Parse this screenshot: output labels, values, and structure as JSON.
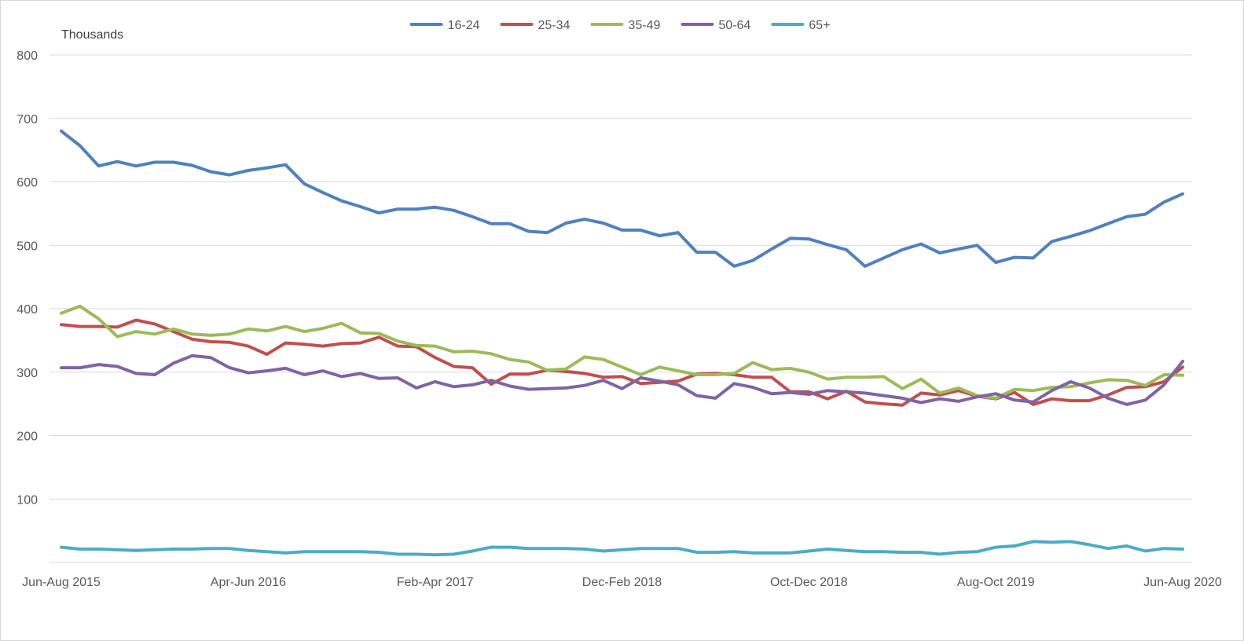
{
  "chart_data": {
    "type": "line",
    "unit_label": "Thousands",
    "ylim": [
      0,
      800
    ],
    "yticks": [
      100,
      200,
      300,
      400,
      500,
      600,
      700,
      800
    ],
    "grid": true,
    "legend_position": "top",
    "x_tick_labels": [
      "Jun-Aug 2015",
      "Apr-Jun 2016",
      "Feb-Apr 2017",
      "Dec-Feb 2018",
      "Oct-Dec 2018",
      "Aug-Oct 2019",
      "Jun-Aug 2020"
    ],
    "x": [
      "Jun-Aug 2015",
      "Jul-Sep 2015",
      "Aug-Oct 2015",
      "Sep-Nov 2015",
      "Oct-Dec 2015",
      "Nov-Jan 2016",
      "Dec-Feb 2016",
      "Jan-Mar 2016",
      "Feb-Apr 2016",
      "Mar-May 2016",
      "Apr-Jun 2016",
      "May-Jul 2016",
      "Jun-Aug 2016",
      "Jul-Sep 2016",
      "Aug-Oct 2016",
      "Sep-Nov 2016",
      "Oct-Dec 2016",
      "Nov-Jan 2017",
      "Dec-Feb 2017",
      "Jan-Mar 2017",
      "Feb-Apr 2017",
      "Mar-May 2017",
      "Apr-Jun 2017",
      "May-Jul 2017",
      "Jun-Aug 2017",
      "Jul-Sep 2017",
      "Aug-Oct 2017",
      "Sep-Nov 2017",
      "Oct-Dec 2017",
      "Nov-Jan 2018",
      "Dec-Feb 2018",
      "Jan-Mar 2018",
      "Feb-Apr 2018",
      "Mar-May 2018",
      "Apr-Jun 2018",
      "May-Jul 2018",
      "Jun-Aug 2018",
      "Jul-Sep 2018",
      "Aug-Oct 2018",
      "Sep-Nov 2018",
      "Oct-Dec 2018",
      "Nov-Jan 2019",
      "Dec-Feb 2019",
      "Jan-Mar 2019",
      "Feb-Apr 2019",
      "Mar-May 2019",
      "Apr-Jun 2019",
      "May-Jul 2019",
      "Jun-Aug 2019",
      "Jul-Sep 2019",
      "Aug-Oct 2019",
      "Sep-Nov 2019",
      "Oct-Dec 2019",
      "Nov-Jan 2020",
      "Dec-Feb 2020",
      "Jan-Mar 2020",
      "Feb-Apr 2020",
      "Mar-May 2020",
      "Apr-Jun 2020",
      "May-Jul 2020",
      "Jun-Aug 2020"
    ],
    "series": [
      {
        "name": "16-24",
        "color": "#4f81bd",
        "values": [
          680,
          657,
          625,
          632,
          625,
          631,
          631,
          626,
          616,
          611,
          618,
          622,
          627,
          597,
          583,
          570,
          561,
          551,
          557,
          557,
          560,
          555,
          545,
          534,
          534,
          522,
          520,
          535,
          541,
          535,
          524,
          524,
          515,
          520,
          489,
          489,
          467,
          476,
          494,
          511,
          510,
          501,
          493,
          467,
          480,
          493,
          502,
          488,
          494,
          500,
          473,
          481,
          480,
          506,
          514,
          523,
          534,
          545,
          549,
          568,
          581
        ]
      },
      {
        "name": "25-34",
        "color": "#c0504d",
        "values": [
          375,
          372,
          372,
          371,
          382,
          376,
          364,
          352,
          348,
          347,
          341,
          328,
          346,
          344,
          341,
          345,
          346,
          355,
          341,
          340,
          323,
          309,
          307,
          281,
          297,
          297,
          303,
          301,
          298,
          292,
          293,
          282,
          284,
          286,
          297,
          298,
          296,
          292,
          292,
          269,
          269,
          258,
          270,
          253,
          250,
          248,
          267,
          264,
          271,
          262,
          258,
          268,
          249,
          258,
          255,
          255,
          264,
          276,
          277,
          285,
          308
        ]
      },
      {
        "name": "35-49",
        "color": "#9bbb59",
        "values": [
          393,
          404,
          384,
          356,
          364,
          360,
          368,
          360,
          358,
          360,
          368,
          365,
          372,
          364,
          369,
          377,
          362,
          361,
          349,
          342,
          341,
          332,
          333,
          329,
          320,
          316,
          303,
          305,
          324,
          320,
          308,
          296,
          308,
          302,
          296,
          296,
          298,
          315,
          304,
          306,
          300,
          289,
          292,
          292,
          293,
          274,
          289,
          267,
          275,
          263,
          259,
          273,
          271,
          276,
          277,
          283,
          288,
          287,
          279,
          296,
          295
        ]
      },
      {
        "name": "50-64",
        "color": "#8064a2",
        "values": [
          307,
          307,
          312,
          309,
          298,
          296,
          314,
          326,
          323,
          307,
          299,
          302,
          306,
          296,
          302,
          293,
          298,
          290,
          291,
          275,
          285,
          277,
          280,
          287,
          278,
          273,
          274,
          275,
          279,
          287,
          274,
          291,
          286,
          280,
          263,
          259,
          282,
          276,
          266,
          268,
          265,
          271,
          269,
          267,
          263,
          259,
          252,
          258,
          254,
          261,
          266,
          256,
          253,
          271,
          285,
          275,
          259,
          249,
          256,
          280,
          317
        ]
      },
      {
        "name": "65+",
        "color": "#4bacc6",
        "values": [
          24,
          21,
          21,
          20,
          19,
          20,
          21,
          21,
          22,
          22,
          19,
          17,
          15,
          17,
          17,
          17,
          17,
          16,
          13,
          13,
          12,
          13,
          18,
          24,
          24,
          22,
          22,
          22,
          21,
          18,
          20,
          22,
          22,
          22,
          16,
          16,
          17,
          15,
          15,
          15,
          18,
          21,
          19,
          17,
          17,
          16,
          16,
          13,
          16,
          17,
          24,
          26,
          33,
          32,
          33,
          28,
          22,
          26,
          18,
          22,
          21
        ]
      }
    ]
  }
}
